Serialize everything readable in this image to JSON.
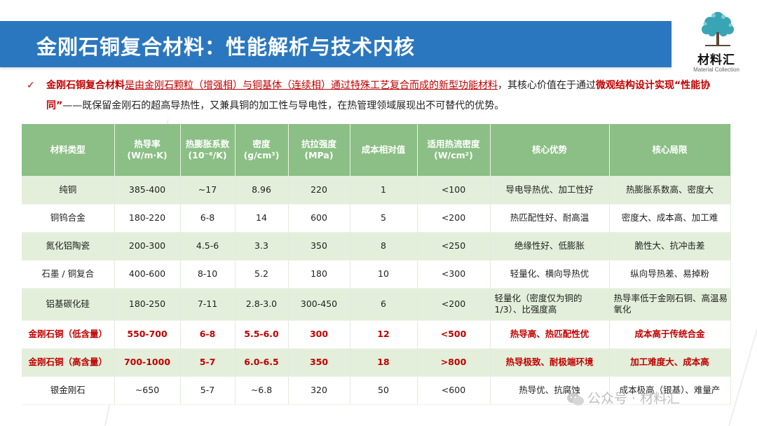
{
  "header": {
    "title": "金刚石铜复合材料：性能解析与技术内核"
  },
  "logo": {
    "name": "材料汇",
    "subtitle": "Material Collection"
  },
  "intro": {
    "seg1": "金刚石铜复合材料",
    "seg2": "是由金刚石颗粒（增强相）与铜基体（连续相）通过特殊工艺复合而成的新型功能材料",
    "seg3": "，其核心价值在于通过",
    "seg4": "微观结构设计实现“性能协同”",
    "seg5": "——既保留金刚石的超高导热性，又兼具铜的加工性与导电性，在热管理领域展现出不可替代的优势。"
  },
  "table": {
    "headers": [
      [
        "材料类型"
      ],
      [
        "热导率",
        "(W/m·K)"
      ],
      [
        "热膨胀系数",
        "(10⁻⁶/K)"
      ],
      [
        "密度",
        "(g/cm³)"
      ],
      [
        "抗拉强度",
        "(MPa)"
      ],
      [
        "成本相对值"
      ],
      [
        "适用热流密度",
        "(W/cm²)"
      ],
      [
        "核心优势"
      ],
      [
        "核心局限"
      ]
    ],
    "rows": [
      [
        "纯铜",
        "385-400",
        "~17",
        "8.96",
        "220",
        "1",
        "<100",
        "导电导热优、加工性好",
        "热膨胀系数高、密度大"
      ],
      [
        "铜钨合金",
        "180-220",
        "6-8",
        "14",
        "600",
        "5",
        "<200",
        "热匹配性好、耐高温",
        "密度大、成本高、加工难"
      ],
      [
        "氮化铝陶瓷",
        "200-300",
        "4.5-6",
        "3.3",
        "350",
        "8",
        "<250",
        "绝缘性好、低膨胀",
        "脆性大、抗冲击差"
      ],
      [
        "石墨 / 铜复合",
        "400-600",
        "8-10",
        "5.2",
        "180",
        "10",
        "<300",
        "轻量化、横向导热优",
        "纵向导热差、易掉粉"
      ],
      [
        "铝基碳化硅",
        "180-250",
        "7-11",
        "2.8-3.0",
        "300-450",
        "6",
        "<200",
        "轻量化（密度仅为铜的1/3）、比强度高",
        "热导率低于金刚石铜、高温易氧化"
      ],
      [
        "金刚石铜（低含量）",
        "550-700",
        "6-8",
        "5.5-6.0",
        "300",
        "12",
        "<500",
        "热导高、热匹配性优",
        "成本高于传统合金"
      ],
      [
        "金刚石铜（高含量）",
        "700-1000",
        "5-7",
        "6.0-6.5",
        "350",
        "18",
        ">800",
        "热导极致、耐极端环境",
        "加工难度大、成本高"
      ],
      [
        "银金刚石",
        "~650",
        "5-7",
        "~6.8",
        "320",
        "50",
        "<600",
        "热导优、抗腐蚀",
        "成本极高（银基）、难量产"
      ]
    ],
    "highlight_rows": [
      5,
      6
    ]
  },
  "watermark": {
    "text": "公众号 · 材料汇"
  },
  "colors": {
    "title_bar": "#2b77bf",
    "header_row": "#8bbf85",
    "band_row": "#e3efda",
    "highlight_text": "#c00000"
  }
}
